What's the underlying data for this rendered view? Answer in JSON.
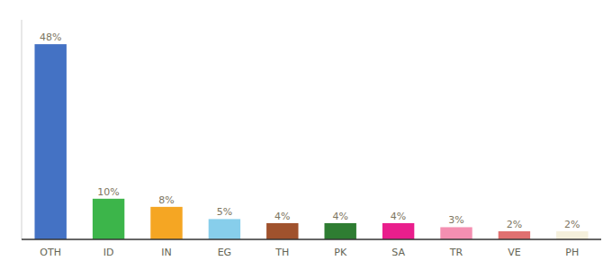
{
  "chart_data": {
    "type": "bar",
    "categories": [
      "OTH",
      "ID",
      "IN",
      "EG",
      "TH",
      "PK",
      "SA",
      "TR",
      "VE",
      "PH"
    ],
    "values": [
      48,
      10,
      8,
      5,
      4,
      4,
      4,
      3,
      2,
      2
    ],
    "value_labels": [
      "48%",
      "10%",
      "8%",
      "5%",
      "4%",
      "4%",
      "4%",
      "3%",
      "2%",
      "2%"
    ],
    "colors": [
      "#4472c4",
      "#3cb54a",
      "#f5a623",
      "#87ceeb",
      "#a0522d",
      "#2e7d32",
      "#e91e8c",
      "#f48fb1",
      "#e07070",
      "#f5f0dc"
    ],
    "ylim": [
      0,
      54
    ],
    "data_labels": true,
    "tick_labels": "x",
    "grid": false
  }
}
